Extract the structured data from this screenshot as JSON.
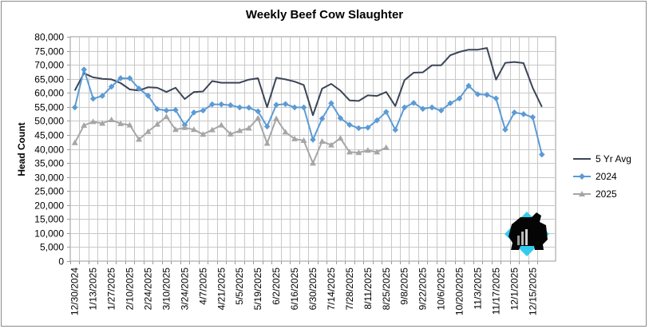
{
  "chart_data": {
    "type": "line",
    "title": "Weekly Beef Cow Slaughter",
    "ylabel": "Head Count",
    "xlabel": "",
    "ylim": [
      0,
      80000
    ],
    "y_ticks": [
      "0",
      "5,000",
      "10,000",
      "15,000",
      "20,000",
      "25,000",
      "30,000",
      "35,000",
      "40,000",
      "45,000",
      "50,000",
      "55,000",
      "60,000",
      "65,000",
      "70,000",
      "75,000",
      "80,000"
    ],
    "x_tick_labels": [
      "12/30/2024",
      "1/13/2025",
      "1/27/2025",
      "2/10/2025",
      "2/24/2025",
      "3/10/2025",
      "3/24/2025",
      "4/7/2025",
      "4/21/2025",
      "5/5/2025",
      "5/19/2025",
      "6/2/2025",
      "6/16/2025",
      "6/30/2025",
      "7/14/2025",
      "7/28/2025",
      "8/11/2025",
      "8/25/2025",
      "9/8/2025",
      "9/22/2025",
      "10/6/2025",
      "10/20/2025",
      "11/3/2025",
      "11/17/2025",
      "12/1/2025",
      "12/15/2025"
    ],
    "x_count": 53,
    "grid": true,
    "legend_position": "right",
    "series": [
      {
        "name": "5 Yr Avg",
        "color": "#3b4556",
        "marker": "none",
        "values": [
          60800,
          67000,
          65500,
          65000,
          64800,
          63500,
          61200,
          60800,
          62000,
          61800,
          60300,
          61800,
          57800,
          60300,
          60500,
          64200,
          63600,
          63600,
          63600,
          64700,
          65200,
          54900,
          65400,
          64800,
          64000,
          62800,
          52000,
          61500,
          63200,
          60800,
          57300,
          57100,
          59100,
          58900,
          60300,
          55300,
          64500,
          67200,
          67300,
          69800,
          69800,
          73400,
          74600,
          75400,
          75400,
          76000,
          64700,
          70700,
          71000,
          70600,
          61800,
          55000,
          null
        ]
      },
      {
        "name": "2024",
        "color": "#5b9bd5",
        "marker": "diamond",
        "values": [
          54800,
          68300,
          57900,
          58900,
          62200,
          65200,
          65200,
          61500,
          59000,
          54200,
          53700,
          53900,
          48500,
          53000,
          53700,
          55900,
          55900,
          55600,
          54800,
          54700,
          53400,
          48000,
          55700,
          56000,
          54800,
          54800,
          43300,
          50800,
          56300,
          51000,
          48600,
          47400,
          47600,
          50200,
          53200,
          46800,
          54800,
          56400,
          54300,
          54800,
          53700,
          56300,
          58000,
          62500,
          59500,
          59300,
          58000,
          46900,
          53000,
          52400,
          51300,
          38000,
          null
        ]
      },
      {
        "name": "2025",
        "color": "#a6a6a6",
        "marker": "triangle",
        "values": [
          42200,
          48400,
          49700,
          49100,
          50400,
          49000,
          48500,
          43400,
          46200,
          48800,
          51500,
          46900,
          47600,
          46900,
          45200,
          46800,
          48500,
          45300,
          46500,
          47400,
          51000,
          42000,
          50800,
          46000,
          43600,
          43000,
          34900,
          42700,
          41400,
          43800,
          38900,
          38700,
          39500,
          38900,
          40500
        ]
      }
    ]
  }
}
